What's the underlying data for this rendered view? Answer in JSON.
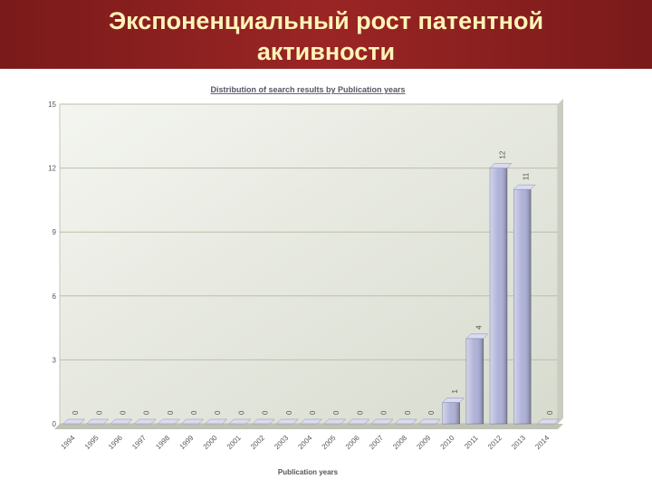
{
  "slide_title": "Экспоненциальный рост патентной активности",
  "chart_data": {
    "type": "bar",
    "title": "Distribution of search results by Publication years",
    "x_label": "Publication years",
    "categories": [
      "1994",
      "1995",
      "1996",
      "1997",
      "1998",
      "1999",
      "2000",
      "2001",
      "2002",
      "2003",
      "2004",
      "2005",
      "2006",
      "2007",
      "2008",
      "2009",
      "2010",
      "2011",
      "2012",
      "2013",
      "2014"
    ],
    "values": [
      0,
      0,
      0,
      0,
      0,
      0,
      0,
      0,
      0,
      0,
      0,
      0,
      0,
      0,
      0,
      0,
      1,
      4,
      12,
      11,
      0
    ],
    "color": "#aeb1d8",
    "ylim": [
      0,
      15
    ],
    "yticks": [
      0,
      3,
      6,
      9,
      12,
      15
    ],
    "grid": true
  }
}
